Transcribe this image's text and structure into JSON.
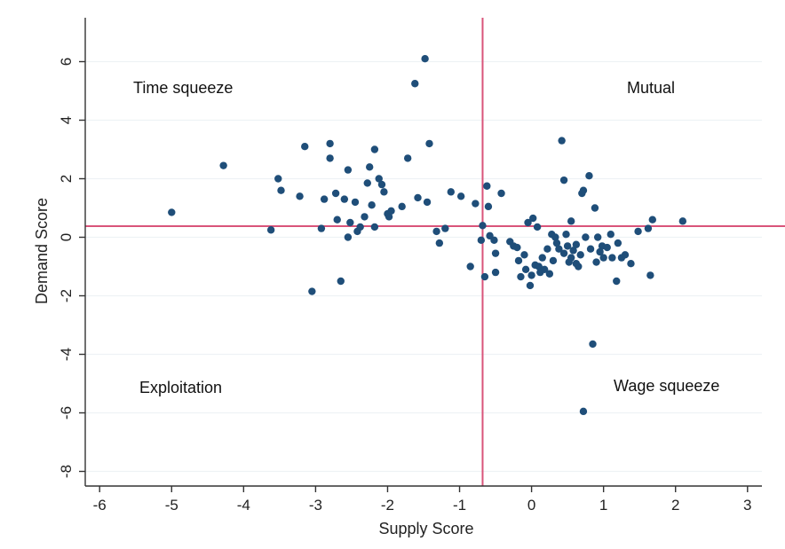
{
  "header_fragment": "",
  "chart_data": {
    "type": "scatter",
    "xlabel": "Supply Score",
    "ylabel": "Demand Score",
    "xlim": [
      -6.2,
      3.2
    ],
    "ylim": [
      -8.5,
      7.5
    ],
    "x_ticks": [
      -6,
      -5,
      -4,
      -3,
      -2,
      -1,
      0,
      1,
      2,
      3
    ],
    "y_ticks": [
      6,
      4,
      2,
      0,
      -2,
      -4,
      -6,
      -8
    ],
    "y_grid": true,
    "grid_color": "#eef2f5",
    "point_color": "#1f4e79",
    "reference_lines": {
      "x": -0.68,
      "y": 0.38,
      "color": "#d9547a"
    },
    "quadrant_labels": [
      "Time squeeze",
      "Mutual",
      "Exploitation",
      "Wage squeeze"
    ],
    "points": [
      [
        -5.0,
        0.85
      ],
      [
        -4.28,
        2.45
      ],
      [
        -3.62,
        0.25
      ],
      [
        -3.52,
        2.0
      ],
      [
        -3.48,
        1.6
      ],
      [
        -3.22,
        1.4
      ],
      [
        -3.15,
        3.1
      ],
      [
        -3.05,
        -1.85
      ],
      [
        -2.92,
        0.3
      ],
      [
        -2.88,
        1.3
      ],
      [
        -2.8,
        3.2
      ],
      [
        -2.8,
        2.7
      ],
      [
        -2.72,
        1.5
      ],
      [
        -2.7,
        0.6
      ],
      [
        -2.65,
        -1.5
      ],
      [
        -2.6,
        1.3
      ],
      [
        -2.55,
        2.3
      ],
      [
        -2.55,
        0.0
      ],
      [
        -2.52,
        0.5
      ],
      [
        -2.45,
        1.2
      ],
      [
        -2.42,
        0.2
      ],
      [
        -2.38,
        0.35
      ],
      [
        -2.32,
        0.7
      ],
      [
        -2.28,
        1.85
      ],
      [
        -2.25,
        2.4
      ],
      [
        -2.22,
        1.1
      ],
      [
        -2.18,
        3.0
      ],
      [
        -2.18,
        0.35
      ],
      [
        -2.12,
        2.0
      ],
      [
        -2.08,
        1.8
      ],
      [
        -2.05,
        1.55
      ],
      [
        -2.0,
        0.8
      ],
      [
        -1.98,
        0.7
      ],
      [
        -1.95,
        0.9
      ],
      [
        -1.8,
        1.05
      ],
      [
        -1.72,
        2.7
      ],
      [
        -1.62,
        5.25
      ],
      [
        -1.58,
        1.35
      ],
      [
        -1.48,
        6.1
      ],
      [
        -1.45,
        1.2
      ],
      [
        -1.42,
        3.2
      ],
      [
        -1.32,
        0.2
      ],
      [
        -1.28,
        -0.2
      ],
      [
        -1.2,
        0.3
      ],
      [
        -1.12,
        1.55
      ],
      [
        -0.98,
        1.4
      ],
      [
        -0.85,
        -1.0
      ],
      [
        -0.78,
        1.15
      ],
      [
        -0.7,
        -0.1
      ],
      [
        -0.68,
        0.4
      ],
      [
        -0.65,
        -1.35
      ],
      [
        -0.62,
        1.75
      ],
      [
        -0.6,
        1.05
      ],
      [
        -0.58,
        0.05
      ],
      [
        -0.52,
        -0.1
      ],
      [
        -0.5,
        -0.55
      ],
      [
        -0.5,
        -1.2
      ],
      [
        -0.42,
        1.5
      ],
      [
        -0.3,
        -0.15
      ],
      [
        -0.25,
        -0.3
      ],
      [
        -0.2,
        -0.35
      ],
      [
        -0.18,
        -0.8
      ],
      [
        -0.15,
        -1.35
      ],
      [
        -0.1,
        -0.6
      ],
      [
        -0.08,
        -1.1
      ],
      [
        -0.05,
        0.5
      ],
      [
        -0.02,
        -1.65
      ],
      [
        0.0,
        -1.3
      ],
      [
        0.02,
        0.65
      ],
      [
        0.05,
        -0.95
      ],
      [
        0.08,
        0.35
      ],
      [
        0.1,
        -1.0
      ],
      [
        0.12,
        -1.2
      ],
      [
        0.15,
        -0.7
      ],
      [
        0.18,
        -1.1
      ],
      [
        0.22,
        -0.4
      ],
      [
        0.25,
        -1.25
      ],
      [
        0.28,
        0.1
      ],
      [
        0.3,
        -0.8
      ],
      [
        0.33,
        0.0
      ],
      [
        0.35,
        -0.2
      ],
      [
        0.38,
        -0.4
      ],
      [
        0.42,
        3.3
      ],
      [
        0.45,
        -0.55
      ],
      [
        0.45,
        1.95
      ],
      [
        0.48,
        0.1
      ],
      [
        0.5,
        -0.3
      ],
      [
        0.52,
        -0.85
      ],
      [
        0.55,
        -0.7
      ],
      [
        0.55,
        0.55
      ],
      [
        0.58,
        -0.45
      ],
      [
        0.62,
        -0.25
      ],
      [
        0.62,
        -0.9
      ],
      [
        0.65,
        -1.0
      ],
      [
        0.68,
        -0.6
      ],
      [
        0.7,
        1.5
      ],
      [
        0.72,
        1.6
      ],
      [
        0.75,
        0.0
      ],
      [
        0.8,
        2.1
      ],
      [
        0.82,
        -0.4
      ],
      [
        0.85,
        -3.65
      ],
      [
        0.88,
        1.0
      ],
      [
        0.9,
        -0.85
      ],
      [
        0.92,
        0.0
      ],
      [
        0.95,
        -0.5
      ],
      [
        0.98,
        -0.3
      ],
      [
        1.0,
        -0.7
      ],
      [
        1.05,
        -0.35
      ],
      [
        1.1,
        0.1
      ],
      [
        1.12,
        -0.7
      ],
      [
        1.18,
        -1.5
      ],
      [
        1.2,
        -0.2
      ],
      [
        1.25,
        -0.7
      ],
      [
        1.3,
        -0.6
      ],
      [
        1.38,
        -0.9
      ],
      [
        1.48,
        0.2
      ],
      [
        1.62,
        0.3
      ],
      [
        1.65,
        -1.3
      ],
      [
        1.68,
        0.6
      ],
      [
        2.1,
        0.55
      ],
      [
        0.72,
        -5.95
      ]
    ]
  }
}
